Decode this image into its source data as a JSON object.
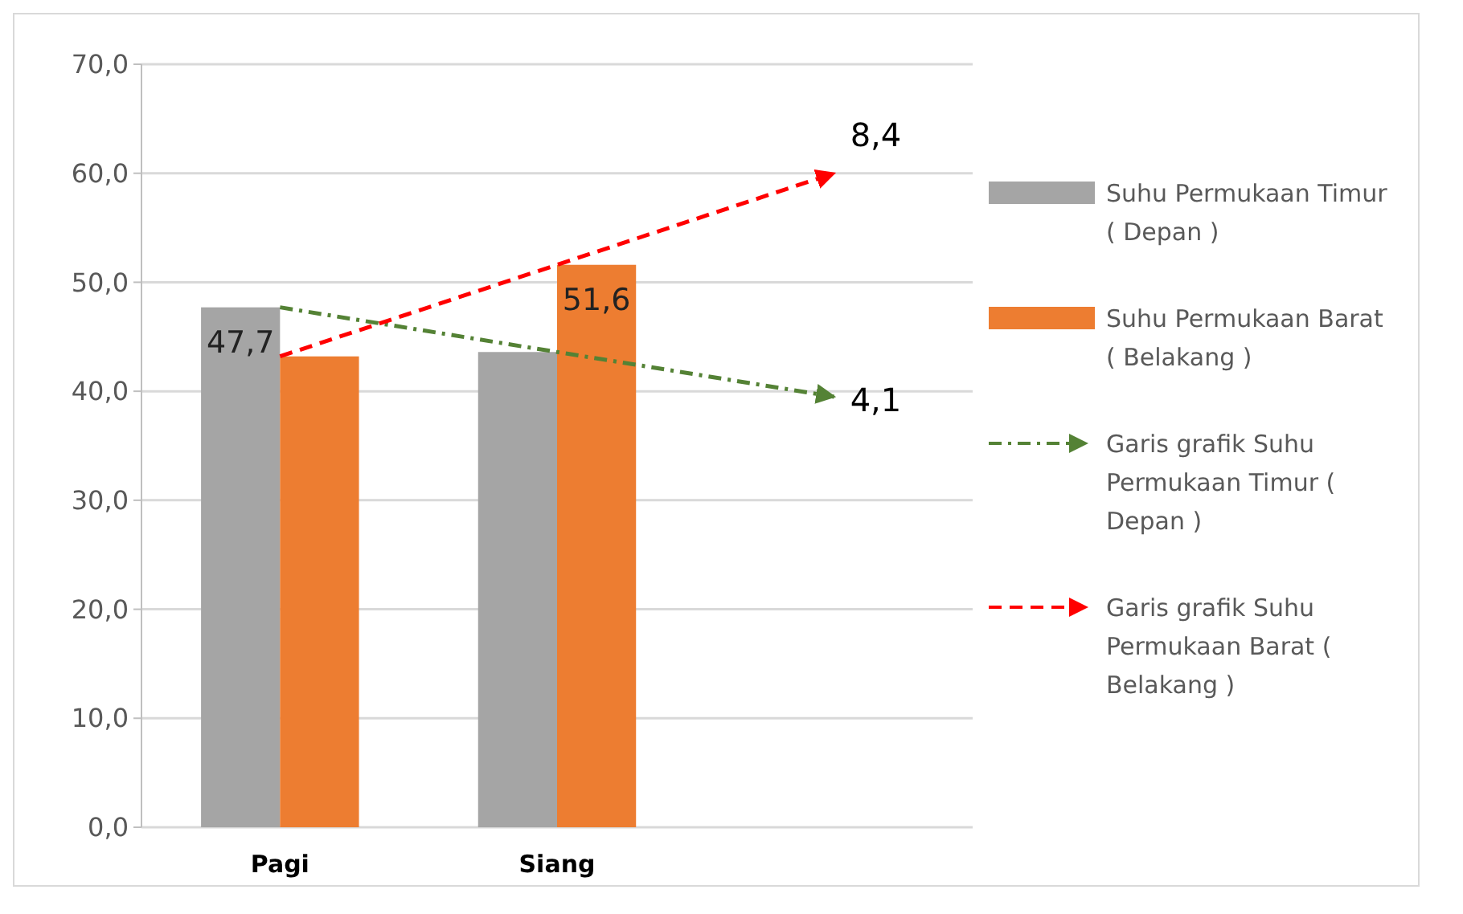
{
  "chart_data": {
    "type": "bar",
    "categories": [
      "Pagi",
      "Siang",
      null
    ],
    "series": [
      {
        "name": "Suhu Permukaan Timur ( Depan )",
        "color": "#a5a5a5",
        "values": [
          47.7,
          43.6,
          null
        ],
        "value_labels": [
          "47,7",
          null,
          null
        ]
      },
      {
        "name": "Suhu Permukaan Barat ( Belakang )",
        "color": "#ed7d31",
        "values": [
          43.2,
          51.6,
          null
        ],
        "value_labels": [
          null,
          "51,6",
          null
        ]
      },
      {
        "type": "line",
        "name": "Garis grafik Suhu Permukaan Timur ( Depan )",
        "color": "#548235",
        "line_style": "dashdot",
        "values": [
          47.7,
          43.6,
          39.5
        ]
      },
      {
        "type": "line",
        "name": "Garis grafik Suhu Permukaan Barat ( Belakang )",
        "color": "#ff0000",
        "line_style": "dashed",
        "values": [
          43.2,
          51.6,
          60.0
        ]
      }
    ],
    "annotations": [
      "8,4",
      "4,1"
    ],
    "ylim": [
      0,
      70
    ],
    "yticks": [
      {
        "value": 0,
        "label": "0,0"
      },
      {
        "value": 10,
        "label": "10,0"
      },
      {
        "value": 20,
        "label": "20,0"
      },
      {
        "value": 30,
        "label": "30,0"
      },
      {
        "value": 40,
        "label": "40,0"
      },
      {
        "value": 50,
        "label": "50,0"
      },
      {
        "value": 60,
        "label": "60,0"
      },
      {
        "value": 70,
        "label": "70,0"
      }
    ],
    "grid": "y",
    "legend": "right"
  }
}
